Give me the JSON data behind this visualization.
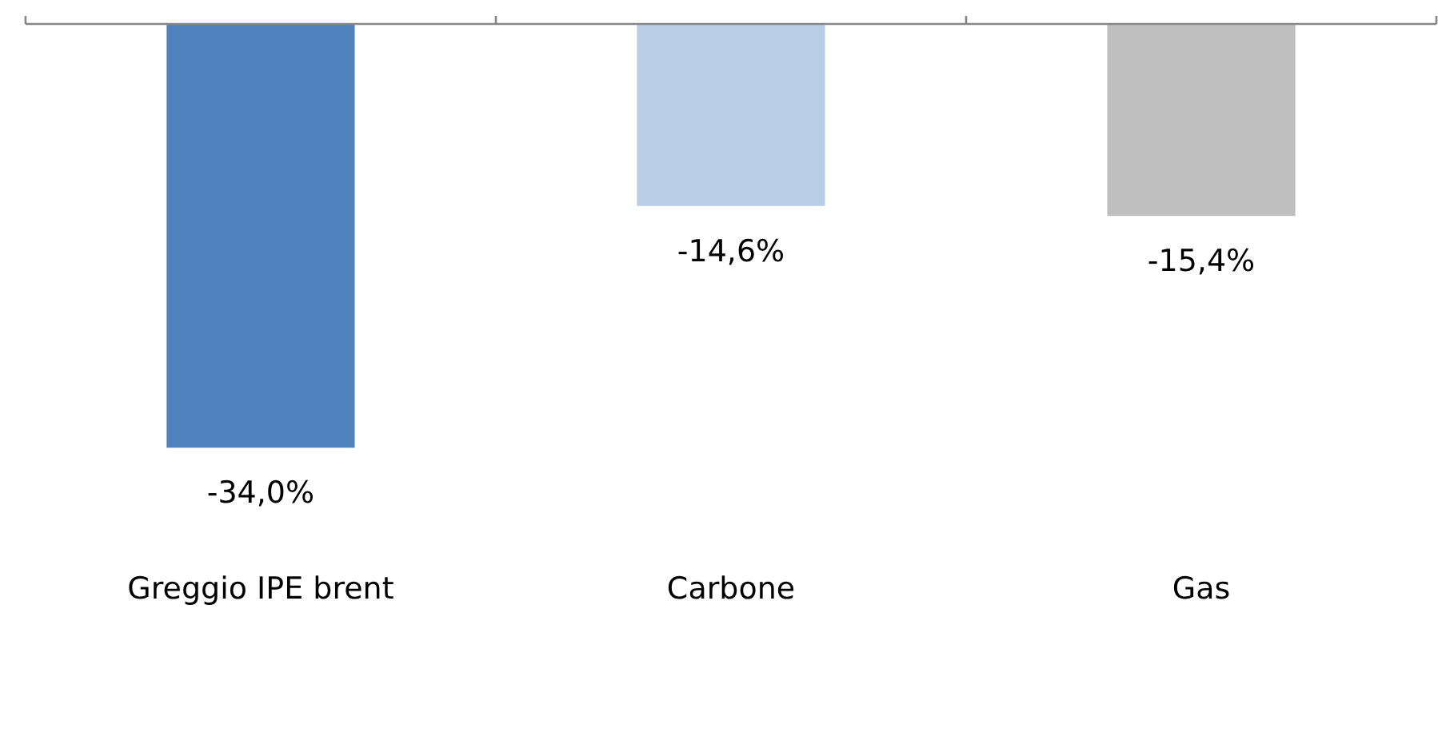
{
  "chart_data": {
    "type": "bar",
    "categories": [
      "Greggio IPE brent",
      "Carbone",
      "Gas"
    ],
    "values": [
      -34.0,
      -14.6,
      -15.4
    ],
    "colors": [
      "#4f81bd",
      "#b9cde5",
      "#bfbfbf"
    ],
    "value_labels": [
      "-34,0%",
      "-14,6%",
      "-15,4%"
    ],
    "grid": false,
    "legend": false
  }
}
